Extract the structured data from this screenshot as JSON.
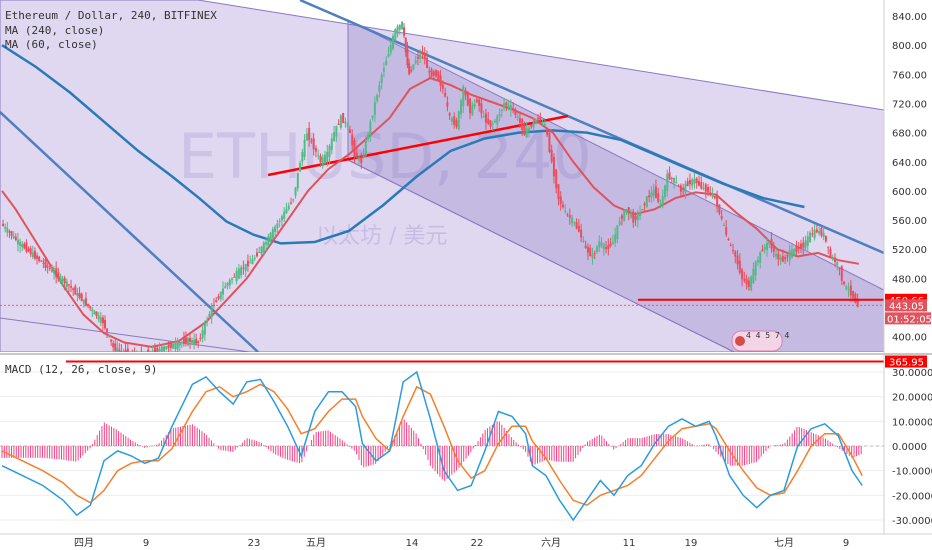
{
  "chart_data": [
    {
      "type": "candlestick",
      "title": "Ethereum / Dollar, 240, BITFINEX",
      "indicators": [
        "MA (240, close)",
        "MA (60, close)"
      ],
      "watermark": "ETHUSD, 240",
      "watermark_sub": "以太坊 / 美元",
      "x_ticks": [
        "四月",
        "9",
        "23",
        "五月",
        "14",
        "22",
        "六月",
        "11",
        "19",
        "七月",
        "9"
      ],
      "y_ticks": [
        "840.00",
        "800.00",
        "760.00",
        "720.00",
        "680.00",
        "640.00",
        "600.00",
        "560.00",
        "520.00",
        "480.00",
        "440.00",
        "400.00"
      ],
      "ylim": [
        345,
        852
      ],
      "price_labels": {
        "horizontal_level": "450.66",
        "last_price": "443.05",
        "countdown": "01:52:05",
        "support_level": "365.95"
      },
      "price_values": {
        "horizontal_level": 450.66,
        "last_price": 443.05,
        "support_level": 365.95
      },
      "bar_count_badge": "4 4 5 7 4",
      "close_path": [
        [
          0,
          555
        ],
        [
          5,
          530
        ],
        [
          10,
          510
        ],
        [
          15,
          490
        ],
        [
          20,
          470
        ],
        [
          25,
          445
        ],
        [
          30,
          420
        ],
        [
          33,
          385
        ],
        [
          36,
          378
        ],
        [
          40,
          372
        ],
        [
          44,
          378
        ],
        [
          48,
          385
        ],
        [
          52,
          390
        ],
        [
          55,
          395
        ],
        [
          58,
          392
        ],
        [
          62,
          440
        ],
        [
          66,
          470
        ],
        [
          70,
          490
        ],
        [
          74,
          505
        ],
        [
          78,
          530
        ],
        [
          82,
          560
        ],
        [
          86,
          590
        ],
        [
          88,
          640
        ],
        [
          90,
          680
        ],
        [
          92,
          660
        ],
        [
          94,
          640
        ],
        [
          96,
          650
        ],
        [
          98,
          680
        ],
        [
          100,
          700
        ],
        [
          102,
          690
        ],
        [
          104,
          650
        ],
        [
          106,
          640
        ],
        [
          108,
          680
        ],
        [
          110,
          720
        ],
        [
          112,
          760
        ],
        [
          114,
          790
        ],
        [
          116,
          820
        ],
        [
          118,
          830
        ],
        [
          119,
          790
        ],
        [
          120,
          760
        ],
        [
          122,
          780
        ],
        [
          124,
          790
        ],
        [
          126,
          760
        ],
        [
          128,
          760
        ],
        [
          130,
          740
        ],
        [
          132,
          700
        ],
        [
          134,
          690
        ],
        [
          136,
          740
        ],
        [
          138,
          710
        ],
        [
          140,
          725
        ],
        [
          142,
          700
        ],
        [
          144,
          690
        ],
        [
          146,
          700
        ],
        [
          148,
          720
        ],
        [
          150,
          715
        ],
        [
          152,
          700
        ],
        [
          154,
          680
        ],
        [
          156,
          690
        ],
        [
          158,
          700
        ],
        [
          160,
          690
        ],
        [
          162,
          640
        ],
        [
          164,
          590
        ],
        [
          166,
          570
        ],
        [
          168,
          560
        ],
        [
          170,
          545
        ],
        [
          172,
          520
        ],
        [
          174,
          510
        ],
        [
          176,
          530
        ],
        [
          178,
          520
        ],
        [
          180,
          530
        ],
        [
          182,
          560
        ],
        [
          184,
          575
        ],
        [
          186,
          560
        ],
        [
          188,
          570
        ],
        [
          190,
          590
        ],
        [
          192,
          600
        ],
        [
          194,
          580
        ],
        [
          196,
          620
        ],
        [
          198,
          615
        ],
        [
          200,
          600
        ],
        [
          202,
          610
        ],
        [
          204,
          615
        ],
        [
          206,
          605
        ],
        [
          208,
          600
        ],
        [
          210,
          590
        ],
        [
          212,
          560
        ],
        [
          214,
          530
        ],
        [
          216,
          510
        ],
        [
          218,
          480
        ],
        [
          220,
          470
        ],
        [
          222,
          500
        ],
        [
          224,
          520
        ],
        [
          226,
          530
        ],
        [
          228,
          510
        ],
        [
          230,
          505
        ],
        [
          232,
          515
        ],
        [
          234,
          520
        ],
        [
          236,
          525
        ],
        [
          238,
          540
        ],
        [
          240,
          545
        ],
        [
          242,
          540
        ],
        [
          244,
          510
        ],
        [
          246,
          500
        ],
        [
          248,
          470
        ],
        [
          250,
          460
        ],
        [
          252,
          443
        ]
      ],
      "x_unit": "approx. days since start of view",
      "macd": {
        "title": "MACD (12, 26, close, 9)",
        "y_ticks": [
          "30.0000",
          "20.0000",
          "10.0000",
          "0.0000",
          "-10.0000",
          "-20.0000",
          "-30.0000"
        ],
        "ylim": [
          -33,
          33
        ],
        "macd_line": [
          [
            0,
            -8
          ],
          [
            6,
            -12
          ],
          [
            12,
            -16
          ],
          [
            18,
            -22
          ],
          [
            22,
            -28
          ],
          [
            26,
            -24
          ],
          [
            30,
            -6
          ],
          [
            34,
            -2
          ],
          [
            38,
            -4
          ],
          [
            42,
            -7
          ],
          [
            46,
            -5
          ],
          [
            50,
            8
          ],
          [
            56,
            25
          ],
          [
            60,
            28
          ],
          [
            64,
            22
          ],
          [
            68,
            17
          ],
          [
            72,
            26
          ],
          [
            76,
            27
          ],
          [
            80,
            18
          ],
          [
            84,
            8
          ],
          [
            88,
            -4
          ],
          [
            92,
            14
          ],
          [
            96,
            22
          ],
          [
            100,
            22
          ],
          [
            104,
            16
          ],
          [
            106,
            1
          ],
          [
            110,
            -6
          ],
          [
            114,
            -2
          ],
          [
            118,
            26
          ],
          [
            122,
            30
          ],
          [
            126,
            11
          ],
          [
            130,
            -10
          ],
          [
            134,
            -18
          ],
          [
            138,
            -16
          ],
          [
            142,
            -2
          ],
          [
            146,
            14
          ],
          [
            150,
            12
          ],
          [
            154,
            5
          ],
          [
            156,
            -8
          ],
          [
            160,
            -12
          ],
          [
            164,
            -22
          ],
          [
            168,
            -30
          ],
          [
            172,
            -22
          ],
          [
            176,
            -14
          ],
          [
            180,
            -20
          ],
          [
            184,
            -12
          ],
          [
            188,
            -8
          ],
          [
            192,
            1
          ],
          [
            196,
            8
          ],
          [
            200,
            11
          ],
          [
            204,
            8
          ],
          [
            208,
            10
          ],
          [
            210,
            4
          ],
          [
            214,
            -12
          ],
          [
            218,
            -20
          ],
          [
            222,
            -25
          ],
          [
            226,
            -20
          ],
          [
            230,
            -18
          ],
          [
            234,
            0
          ],
          [
            238,
            7
          ],
          [
            242,
            9
          ],
          [
            246,
            4
          ],
          [
            250,
            -10
          ],
          [
            253,
            -16
          ]
        ],
        "signal_line": [
          [
            0,
            -2
          ],
          [
            6,
            -6
          ],
          [
            12,
            -10
          ],
          [
            18,
            -15
          ],
          [
            22,
            -20
          ],
          [
            26,
            -23
          ],
          [
            30,
            -18
          ],
          [
            34,
            -10
          ],
          [
            38,
            -7
          ],
          [
            42,
            -6
          ],
          [
            46,
            -6
          ],
          [
            50,
            -1
          ],
          [
            56,
            14
          ],
          [
            60,
            22
          ],
          [
            64,
            24
          ],
          [
            68,
            20
          ],
          [
            72,
            22
          ],
          [
            76,
            25
          ],
          [
            80,
            22
          ],
          [
            84,
            15
          ],
          [
            88,
            5
          ],
          [
            92,
            7
          ],
          [
            96,
            14
          ],
          [
            100,
            19
          ],
          [
            104,
            19
          ],
          [
            106,
            12
          ],
          [
            110,
            3
          ],
          [
            114,
            -2
          ],
          [
            118,
            12
          ],
          [
            122,
            24
          ],
          [
            126,
            21
          ],
          [
            130,
            8
          ],
          [
            134,
            -6
          ],
          [
            138,
            -13
          ],
          [
            142,
            -10
          ],
          [
            146,
            1
          ],
          [
            150,
            8
          ],
          [
            154,
            8
          ],
          [
            156,
            2
          ],
          [
            160,
            -5
          ],
          [
            164,
            -14
          ],
          [
            168,
            -22
          ],
          [
            172,
            -24
          ],
          [
            176,
            -20
          ],
          [
            180,
            -18
          ],
          [
            184,
            -16
          ],
          [
            188,
            -12
          ],
          [
            192,
            -5
          ],
          [
            196,
            2
          ],
          [
            200,
            7
          ],
          [
            204,
            8
          ],
          [
            208,
            9
          ],
          [
            210,
            7
          ],
          [
            214,
            -2
          ],
          [
            218,
            -10
          ],
          [
            222,
            -17
          ],
          [
            226,
            -20
          ],
          [
            230,
            -19
          ],
          [
            234,
            -10
          ],
          [
            238,
            0
          ],
          [
            242,
            5
          ],
          [
            246,
            5
          ],
          [
            250,
            -4
          ],
          [
            253,
            -12
          ]
        ]
      }
    }
  ],
  "colors": {
    "candle_up": "#53b987",
    "candle_down": "#eb4d5c",
    "ma240": "#2a7ab8",
    "ma60": "#e0525c",
    "channel_fill": "#7a5fb8",
    "trendline_blue": "#4f7fbf",
    "red_line": "#ff0000",
    "macd_line": "#2b9be0",
    "signal_line": "#f57f2a",
    "histogram": "#ff3d82"
  }
}
